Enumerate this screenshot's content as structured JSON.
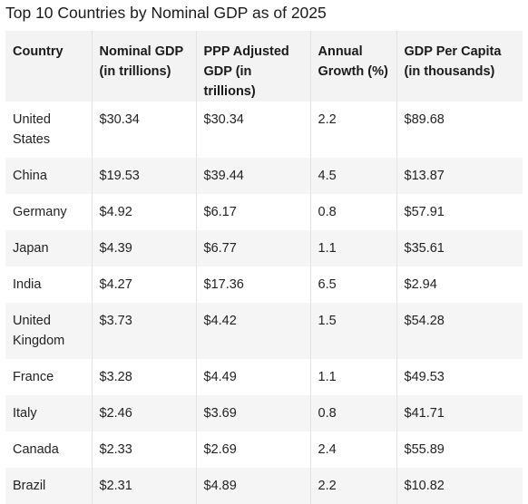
{
  "title": "Top 10 Countries by Nominal GDP as of 2025",
  "table": {
    "headers": [
      "Country",
      "Nominal GDP (in trillions)",
      "PPP Adjusted GDP (in trillions)",
      "Annual Growth (%)",
      "GDP Per Capita (in thousands)"
    ],
    "rows": [
      [
        "United States",
        "$30.34",
        "$30.34",
        "2.2",
        "$89.68"
      ],
      [
        "China",
        "$19.53",
        "$39.44",
        "4.5",
        "$13.87"
      ],
      [
        "Germany",
        "$4.92",
        "$6.17",
        "0.8",
        "$57.91"
      ],
      [
        "Japan",
        "$4.39",
        "$6.77",
        "1.1",
        "$35.61"
      ],
      [
        "India",
        "$4.27",
        "$17.36",
        "6.5",
        "$2.94"
      ],
      [
        "United Kingdom",
        "$3.73",
        "$4.42",
        "1.5",
        "$54.28"
      ],
      [
        "France",
        "$3.28",
        "$4.49",
        "1.1",
        "$49.53"
      ],
      [
        "Italy",
        "$2.46",
        "$3.69",
        "0.8",
        "$41.71"
      ],
      [
        "Canada",
        "$2.33",
        "$2.69",
        "2.4",
        "$55.89"
      ],
      [
        "Brazil",
        "$2.31",
        "$4.89",
        "2.2",
        "$10.82"
      ]
    ]
  }
}
